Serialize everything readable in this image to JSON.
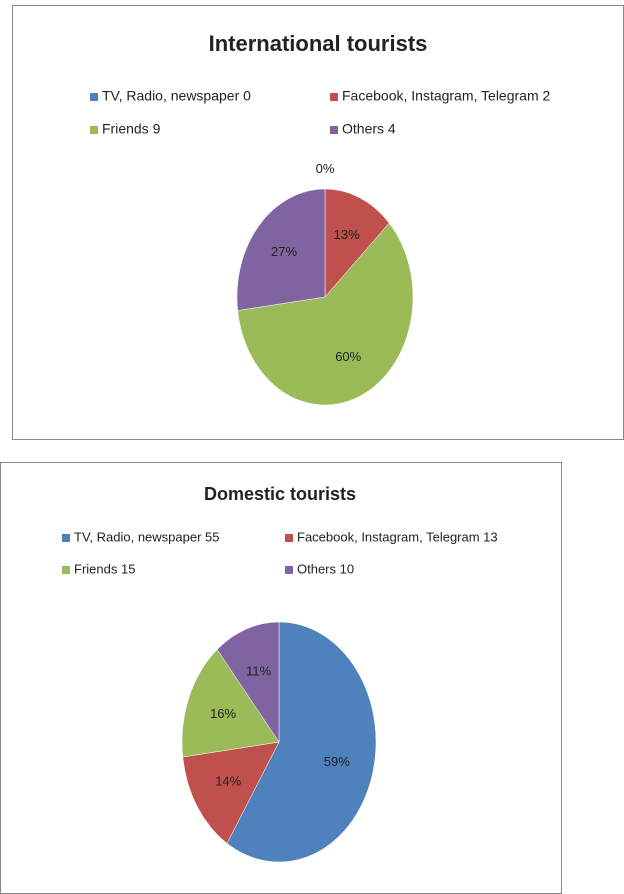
{
  "chart_data": [
    {
      "type": "pie",
      "title": "International tourists",
      "categories": [
        "TV, Radio, newspaper 0",
        "Facebook, Instagram, Telegram 2",
        "Friends 9",
        "Others 4"
      ],
      "values": [
        0,
        13,
        60,
        27
      ],
      "value_labels": [
        "0%",
        "13%",
        "60%",
        "27%"
      ],
      "colors": [
        "#4f81bd",
        "#c0504d",
        "#9bbb59",
        "#8064a2"
      ]
    },
    {
      "type": "pie",
      "title": "Domestic tourists",
      "categories": [
        "TV, Radio, newspaper 55",
        "Facebook, Instagram, Telegram 13",
        "Friends 15",
        "Others 10"
      ],
      "values": [
        59,
        14,
        16,
        11
      ],
      "value_labels": [
        "59%",
        "14%",
        "16%",
        "11%"
      ],
      "colors": [
        "#4f81bd",
        "#c0504d",
        "#9bbb59",
        "#8064a2"
      ]
    }
  ]
}
